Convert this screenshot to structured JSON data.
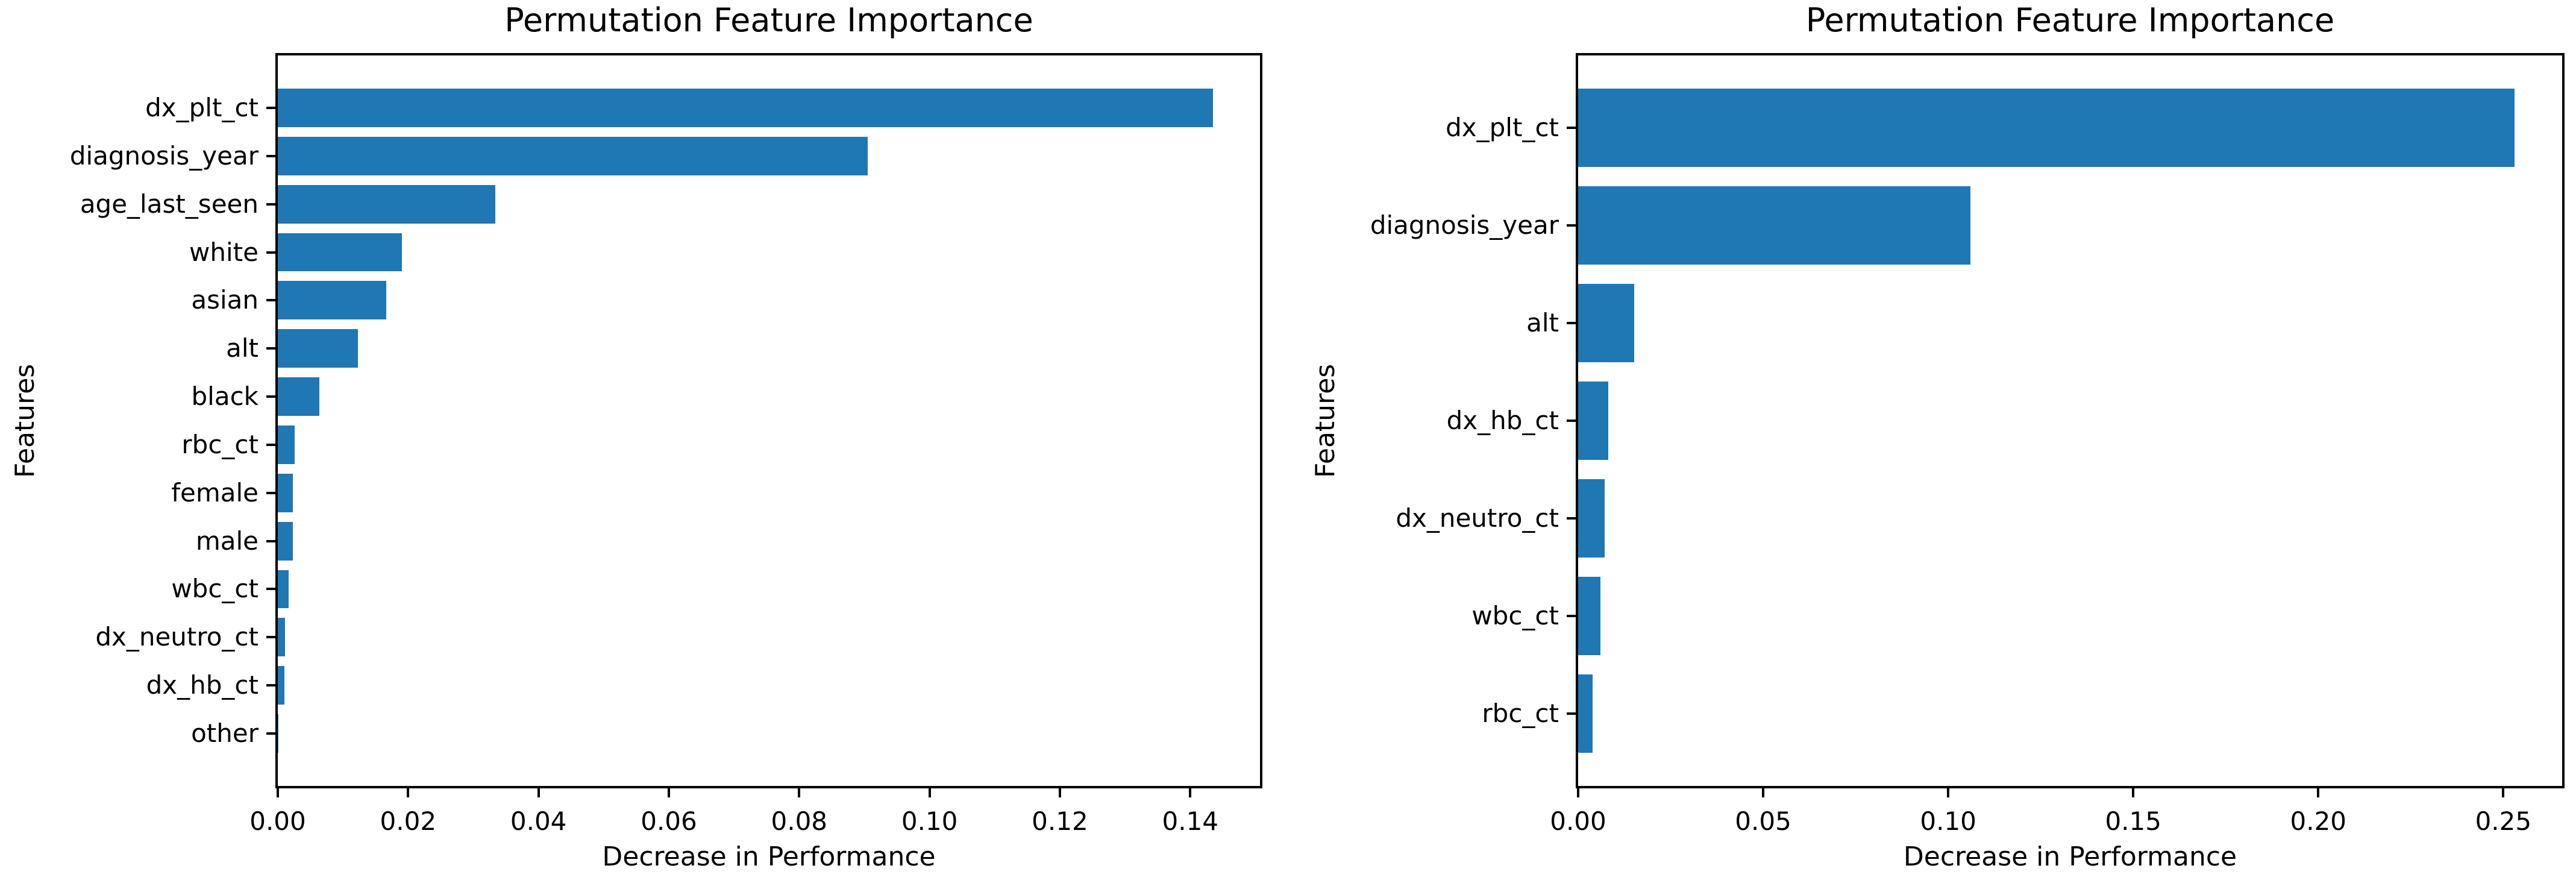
{
  "figure": {
    "background_color": "#ffffff",
    "bar_color": "#1f77b4",
    "text_color": "#000000",
    "spine_color": "#000000"
  },
  "chart_data": [
    {
      "type": "bar",
      "orientation": "horizontal",
      "title": "Permutation Feature Importance",
      "xlabel": "Decrease in Performance",
      "ylabel": "Features",
      "grid": false,
      "legend": null,
      "categories": [
        "dx_plt_ct",
        "diagnosis_year",
        "age_last_seen",
        "white",
        "asian",
        "alt",
        "black",
        "rbc_ct",
        "female",
        "male",
        "wbc_ct",
        "dx_neutro_ct",
        "dx_hb_ct",
        "other"
      ],
      "values": [
        0.1435,
        0.0905,
        0.0334,
        0.019,
        0.0166,
        0.0123,
        0.0064,
        0.0026,
        0.0023,
        0.0023,
        0.0017,
        0.0011,
        0.001,
        0.0001
      ],
      "xlim": [
        0,
        0.1507
      ],
      "xticks": [
        0.0,
        0.02,
        0.04,
        0.06,
        0.08,
        0.1,
        0.12,
        0.14
      ],
      "xtick_labels": [
        "0.00",
        "0.02",
        "0.04",
        "0.06",
        "0.08",
        "0.10",
        "0.12",
        "0.14"
      ]
    },
    {
      "type": "bar",
      "orientation": "horizontal",
      "title": "Permutation Feature Importance",
      "xlabel": "Decrease in Performance",
      "ylabel": "Features",
      "grid": false,
      "legend": null,
      "categories": [
        "dx_plt_ct",
        "diagnosis_year",
        "alt",
        "dx_hb_ct",
        "dx_neutro_ct",
        "wbc_ct",
        "rbc_ct"
      ],
      "values": [
        0.253,
        0.106,
        0.0151,
        0.0082,
        0.0072,
        0.006,
        0.0039
      ],
      "xlim": [
        0,
        0.2659
      ],
      "xticks": [
        0.0,
        0.05,
        0.1,
        0.15,
        0.2,
        0.25
      ],
      "xtick_labels": [
        "0.00",
        "0.05",
        "0.10",
        "0.15",
        "0.20",
        "0.25"
      ]
    }
  ]
}
